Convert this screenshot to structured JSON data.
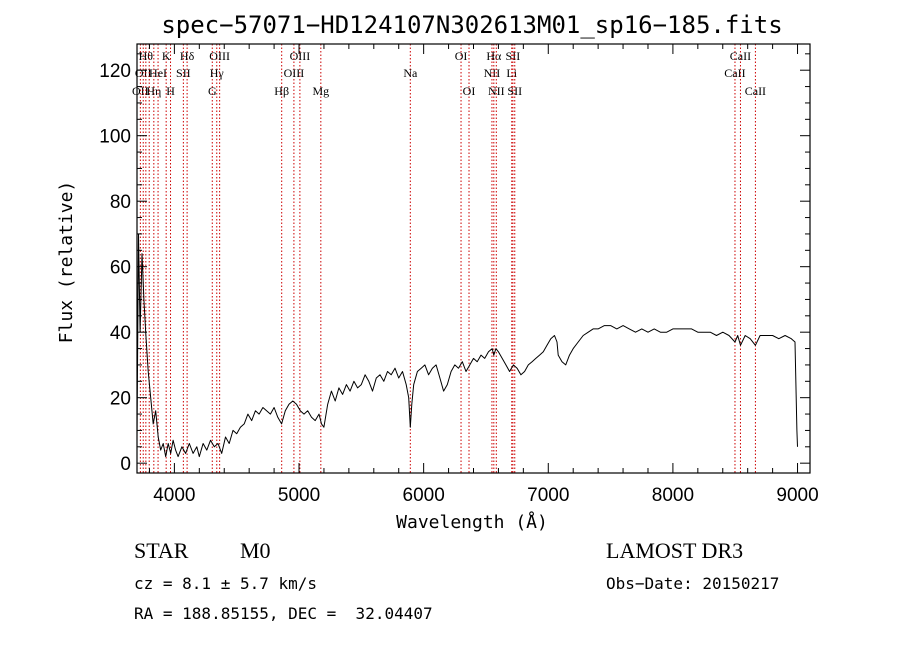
{
  "chart_data": {
    "type": "line",
    "title": "spec−57071−HD124107N302613M01_sp16−185.fits",
    "xlabel": "Wavelength (Å)",
    "ylabel": "Flux (relative)",
    "xlim": [
      3700,
      9100
    ],
    "ylim": [
      -3,
      128
    ],
    "x_ticks": [
      4000,
      5000,
      6000,
      7000,
      8000,
      9000
    ],
    "x_tick_labels": [
      "4000",
      "5000",
      "6000",
      "7000",
      "8000",
      "9000"
    ],
    "y_ticks": [
      0,
      20,
      40,
      60,
      80,
      100,
      120
    ],
    "y_tick_labels": [
      "0",
      "20",
      "40",
      "60",
      "80",
      "100",
      "120"
    ],
    "series": [
      {
        "name": "flux",
        "points": [
          [
            3700,
            8
          ],
          [
            3712,
            70
          ],
          [
            3725,
            40
          ],
          [
            3740,
            64
          ],
          [
            3755,
            50
          ],
          [
            3770,
            40
          ],
          [
            3790,
            28
          ],
          [
            3810,
            20
          ],
          [
            3830,
            12
          ],
          [
            3850,
            16
          ],
          [
            3870,
            8
          ],
          [
            3890,
            4
          ],
          [
            3910,
            6
          ],
          [
            3930,
            2
          ],
          [
            3950,
            6
          ],
          [
            3970,
            3
          ],
          [
            3990,
            7
          ],
          [
            4010,
            4
          ],
          [
            4030,
            2
          ],
          [
            4060,
            5
          ],
          [
            4090,
            3
          ],
          [
            4120,
            6
          ],
          [
            4150,
            3
          ],
          [
            4180,
            5
          ],
          [
            4200,
            2
          ],
          [
            4230,
            6
          ],
          [
            4260,
            4
          ],
          [
            4290,
            7
          ],
          [
            4320,
            5
          ],
          [
            4350,
            6
          ],
          [
            4380,
            3
          ],
          [
            4410,
            8
          ],
          [
            4440,
            6
          ],
          [
            4470,
            10
          ],
          [
            4500,
            9
          ],
          [
            4530,
            11
          ],
          [
            4560,
            12
          ],
          [
            4590,
            15
          ],
          [
            4620,
            13
          ],
          [
            4650,
            16
          ],
          [
            4680,
            15
          ],
          [
            4710,
            17
          ],
          [
            4740,
            16
          ],
          [
            4770,
            15
          ],
          [
            4800,
            17
          ],
          [
            4830,
            14
          ],
          [
            4860,
            12
          ],
          [
            4890,
            16
          ],
          [
            4920,
            18
          ],
          [
            4950,
            19
          ],
          [
            4980,
            18
          ],
          [
            5010,
            16
          ],
          [
            5040,
            15
          ],
          [
            5070,
            16
          ],
          [
            5100,
            14
          ],
          [
            5130,
            13
          ],
          [
            5160,
            15
          ],
          [
            5180,
            12
          ],
          [
            5200,
            11
          ],
          [
            5230,
            18
          ],
          [
            5260,
            22
          ],
          [
            5290,
            19
          ],
          [
            5320,
            23
          ],
          [
            5350,
            21
          ],
          [
            5380,
            24
          ],
          [
            5410,
            22
          ],
          [
            5440,
            25
          ],
          [
            5470,
            23
          ],
          [
            5500,
            24
          ],
          [
            5530,
            27
          ],
          [
            5560,
            25
          ],
          [
            5590,
            22
          ],
          [
            5620,
            26
          ],
          [
            5650,
            27
          ],
          [
            5680,
            25
          ],
          [
            5710,
            28
          ],
          [
            5740,
            27
          ],
          [
            5770,
            29
          ],
          [
            5800,
            26
          ],
          [
            5830,
            28
          ],
          [
            5860,
            24
          ],
          [
            5880,
            20
          ],
          [
            5893,
            11
          ],
          [
            5905,
            18
          ],
          [
            5920,
            24
          ],
          [
            5950,
            28
          ],
          [
            5980,
            29
          ],
          [
            6010,
            30
          ],
          [
            6040,
            27
          ],
          [
            6070,
            29
          ],
          [
            6100,
            30
          ],
          [
            6130,
            26
          ],
          [
            6160,
            22
          ],
          [
            6190,
            24
          ],
          [
            6220,
            28
          ],
          [
            6250,
            30
          ],
          [
            6280,
            29
          ],
          [
            6310,
            31
          ],
          [
            6340,
            28
          ],
          [
            6370,
            30
          ],
          [
            6400,
            32
          ],
          [
            6430,
            31
          ],
          [
            6460,
            33
          ],
          [
            6490,
            32
          ],
          [
            6520,
            34
          ],
          [
            6550,
            35
          ],
          [
            6563,
            33
          ],
          [
            6580,
            35
          ],
          [
            6600,
            34
          ],
          [
            6630,
            32
          ],
          [
            6660,
            30
          ],
          [
            6690,
            28
          ],
          [
            6720,
            30
          ],
          [
            6750,
            29
          ],
          [
            6780,
            27
          ],
          [
            6810,
            28
          ],
          [
            6840,
            30
          ],
          [
            6870,
            31
          ],
          [
            6900,
            32
          ],
          [
            6930,
            33
          ],
          [
            6960,
            34
          ],
          [
            6990,
            36
          ],
          [
            7020,
            38
          ],
          [
            7050,
            39
          ],
          [
            7070,
            37
          ],
          [
            7080,
            33
          ],
          [
            7110,
            31
          ],
          [
            7140,
            30
          ],
          [
            7170,
            33
          ],
          [
            7200,
            35
          ],
          [
            7240,
            37
          ],
          [
            7280,
            39
          ],
          [
            7320,
            40
          ],
          [
            7360,
            41
          ],
          [
            7400,
            41
          ],
          [
            7450,
            42
          ],
          [
            7500,
            42
          ],
          [
            7550,
            41
          ],
          [
            7600,
            42
          ],
          [
            7650,
            41
          ],
          [
            7700,
            40
          ],
          [
            7750,
            41
          ],
          [
            7800,
            40
          ],
          [
            7850,
            41
          ],
          [
            7900,
            40
          ],
          [
            7950,
            40
          ],
          [
            8000,
            41
          ],
          [
            8050,
            41
          ],
          [
            8100,
            41
          ],
          [
            8150,
            41
          ],
          [
            8200,
            40
          ],
          [
            8250,
            40
          ],
          [
            8300,
            40
          ],
          [
            8350,
            39
          ],
          [
            8400,
            40
          ],
          [
            8450,
            39
          ],
          [
            8498,
            37
          ],
          [
            8520,
            39
          ],
          [
            8542,
            36
          ],
          [
            8580,
            39
          ],
          [
            8620,
            38
          ],
          [
            8662,
            36
          ],
          [
            8700,
            39
          ],
          [
            8750,
            39
          ],
          [
            8800,
            39
          ],
          [
            8850,
            38
          ],
          [
            8900,
            39
          ],
          [
            8950,
            38
          ],
          [
            8980,
            37
          ],
          [
            8995,
            10
          ],
          [
            9000,
            5
          ]
        ]
      }
    ],
    "lines": [
      {
        "wl": 3727,
        "label": "OII",
        "row": 3
      },
      {
        "wl": 3750,
        "label": "OII",
        "row": 2
      },
      {
        "wl": 3771,
        "label": "Hθ",
        "row": 1
      },
      {
        "wl": 3798,
        "label": "",
        "row": 0
      },
      {
        "wl": 3835,
        "label": "Hη",
        "row": 3
      },
      {
        "wl": 3869,
        "label": "HeI",
        "row": 2
      },
      {
        "wl": 3934,
        "label": "K",
        "row": 1
      },
      {
        "wl": 3969,
        "label": "H",
        "row": 3
      },
      {
        "wl": 4072,
        "label": "SII",
        "row": 2
      },
      {
        "wl": 4102,
        "label": "Hδ",
        "row": 1
      },
      {
        "wl": 4304,
        "label": "G",
        "row": 3
      },
      {
        "wl": 4340,
        "label": "Hγ",
        "row": 2
      },
      {
        "wl": 4363,
        "label": "OIII",
        "row": 1
      },
      {
        "wl": 4861,
        "label": "Hβ",
        "row": 3
      },
      {
        "wl": 4959,
        "label": "OIII",
        "row": 2
      },
      {
        "wl": 5007,
        "label": "OIII",
        "row": 1
      },
      {
        "wl": 5175,
        "label": "Mg",
        "row": 3
      },
      {
        "wl": 5893,
        "label": "Na",
        "row": 2
      },
      {
        "wl": 6300,
        "label": "OI",
        "row": 1
      },
      {
        "wl": 6364,
        "label": "OI",
        "row": 3
      },
      {
        "wl": 6548,
        "label": "NII",
        "row": 2
      },
      {
        "wl": 6563,
        "label": "Hα",
        "row": 1
      },
      {
        "wl": 6583,
        "label": "NII",
        "row": 3
      },
      {
        "wl": 6707,
        "label": "Li",
        "row": 2
      },
      {
        "wl": 6716,
        "label": "SII",
        "row": 1
      },
      {
        "wl": 6731,
        "label": "SII",
        "row": 3
      },
      {
        "wl": 8498,
        "label": "CaII",
        "row": 2
      },
      {
        "wl": 8542,
        "label": "CaII",
        "row": 1
      },
      {
        "wl": 8662,
        "label": "CaII",
        "row": 3
      }
    ]
  },
  "info": {
    "class": "STAR",
    "subclass": "M0",
    "survey": "LAMOST DR3",
    "cz": "cz = 8.1 ± 5.7 km/s",
    "obs_date": "Obs−Date: 20150217",
    "radec": "RA = 188.85155, DEC =  32.04407"
  },
  "colors": {
    "line_marker": "#cc0000",
    "spectrum": "#000000"
  }
}
